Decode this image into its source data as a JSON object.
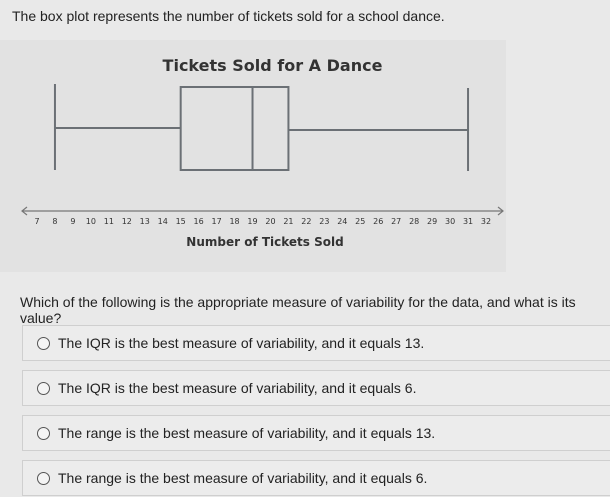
{
  "question": "The box plot represents the number of tickets sold for a school dance.",
  "prompt": "Which of the following is the appropriate measure of variability for the data, and what is its value?",
  "options": [
    "The IQR is the best measure of variability, and it equals 13.",
    "The IQR is the best measure of variability, and it equals 6.",
    "The range is the best measure of variability, and it equals 13.",
    "The range is the best measure of variability, and it equals 6."
  ],
  "chart_data": {
    "type": "boxplot",
    "title": "Tickets Sold for A Dance",
    "xlabel": "Number of Tickets Sold",
    "xlim": [
      7,
      32
    ],
    "ticks": [
      7,
      8,
      9,
      10,
      11,
      12,
      13,
      14,
      15,
      16,
      17,
      18,
      19,
      20,
      21,
      22,
      23,
      24,
      25,
      26,
      27,
      28,
      29,
      30,
      31,
      32
    ],
    "min": 8,
    "q1": 15,
    "median": 19,
    "q3": 21,
    "max": 31,
    "grid": false
  }
}
